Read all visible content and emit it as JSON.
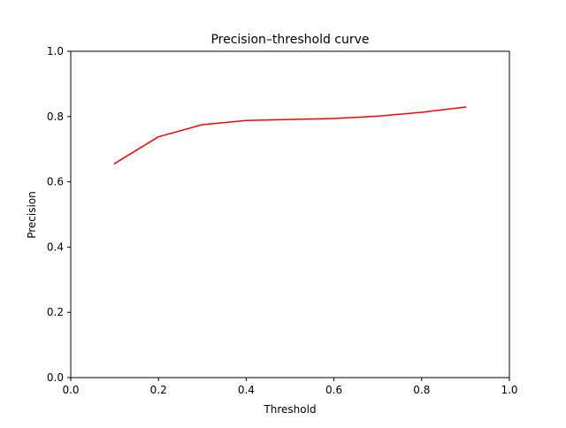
{
  "chart_data": {
    "type": "line",
    "title": "Precision–threshold curve",
    "xlabel": "Threshold",
    "ylabel": "Precision",
    "xlim": [
      0.0,
      1.0
    ],
    "ylim": [
      0.0,
      1.0
    ],
    "grid": false,
    "legend": null,
    "xticks": [
      0.0,
      0.2,
      0.4,
      0.6,
      0.8,
      1.0
    ],
    "xtick_labels": [
      "0.0",
      "0.2",
      "0.4",
      "0.6",
      "0.8",
      "1.0"
    ],
    "yticks": [
      0.0,
      0.2,
      0.4,
      0.6,
      0.8,
      1.0
    ],
    "ytick_labels": [
      "0.0",
      "0.2",
      "0.4",
      "0.6",
      "0.8",
      "1.0"
    ],
    "series": [
      {
        "color": "#ff0000",
        "x": [
          0.1,
          0.2,
          0.3,
          0.4,
          0.5,
          0.6,
          0.7,
          0.8,
          0.9
        ],
        "y": [
          0.656,
          0.738,
          0.775,
          0.788,
          0.791,
          0.794,
          0.801,
          0.813,
          0.829
        ]
      }
    ]
  }
}
